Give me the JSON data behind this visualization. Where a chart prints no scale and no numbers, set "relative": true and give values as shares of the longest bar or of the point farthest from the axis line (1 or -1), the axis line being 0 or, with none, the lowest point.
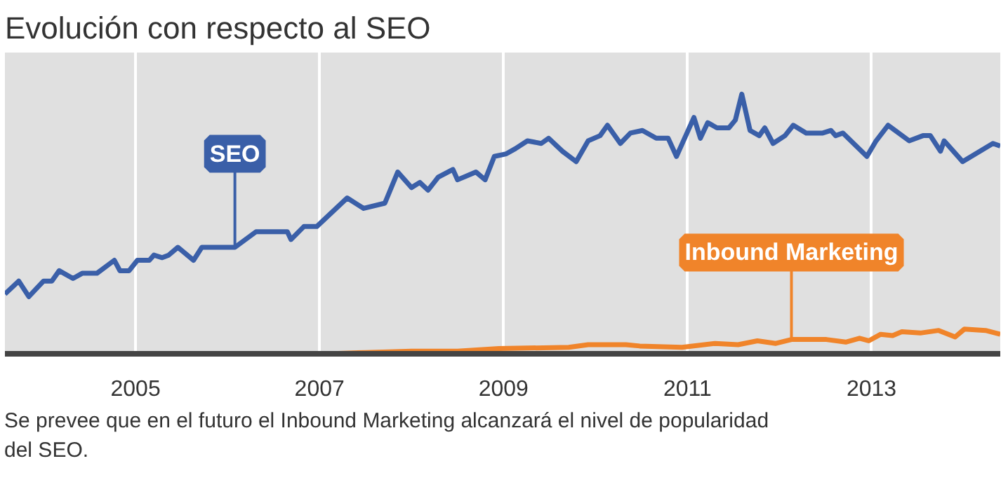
{
  "chart_data": {
    "type": "line",
    "title": "Evolución con respecto al SEO",
    "relative": true,
    "grid": "x",
    "tick_labels": "x",
    "xlim": [
      2003.58,
      2014.4
    ],
    "xticks": [
      2005,
      2007,
      2009,
      2011,
      2013
    ],
    "annotations": [
      "Se prevee que en el futuro el Inbound Marketing alcanzará el nivel de popularidad del SEO."
    ],
    "series": [
      {
        "name": "SEO",
        "color": "#3a5fa8",
        "x": [
          2003.58,
          2003.73,
          2003.84,
          2004.0,
          2004.09,
          2004.17,
          2004.32,
          2004.42,
          2004.58,
          2004.77,
          2004.83,
          2004.93,
          2005.02,
          2005.15,
          2005.2,
          2005.29,
          2005.36,
          2005.46,
          2005.63,
          2005.72,
          2006.08,
          2006.31,
          2006.65,
          2006.69,
          2006.83,
          2006.97,
          2007.3,
          2007.48,
          2007.71,
          2007.85,
          2008.0,
          2008.09,
          2008.18,
          2008.29,
          2008.45,
          2008.5,
          2008.7,
          2008.8,
          2008.9,
          2009.03,
          2009.13,
          2009.26,
          2009.41,
          2009.49,
          2009.64,
          2009.79,
          2009.92,
          2010.05,
          2010.13,
          2010.27,
          2010.38,
          2010.51,
          2010.66,
          2010.79,
          2010.88,
          2011.07,
          2011.14,
          2011.22,
          2011.32,
          2011.45,
          2011.52,
          2011.59,
          2011.68,
          2011.78,
          2011.84,
          2011.93,
          2012.06,
          2012.15,
          2012.29,
          2012.47,
          2012.56,
          2012.61,
          2012.69,
          2012.95,
          2013.05,
          2013.18,
          2013.41,
          2013.56,
          2013.64,
          2013.75,
          2013.79,
          2013.99,
          2014.32,
          2014.4
        ],
        "values": [
          0.23,
          0.28,
          0.22,
          0.28,
          0.28,
          0.32,
          0.29,
          0.31,
          0.31,
          0.36,
          0.32,
          0.32,
          0.36,
          0.36,
          0.38,
          0.37,
          0.38,
          0.41,
          0.36,
          0.41,
          0.41,
          0.47,
          0.47,
          0.44,
          0.49,
          0.49,
          0.6,
          0.56,
          0.58,
          0.7,
          0.64,
          0.66,
          0.63,
          0.68,
          0.71,
          0.67,
          0.7,
          0.67,
          0.76,
          0.77,
          0.79,
          0.82,
          0.81,
          0.83,
          0.78,
          0.74,
          0.82,
          0.84,
          0.88,
          0.81,
          0.85,
          0.86,
          0.83,
          0.83,
          0.76,
          0.91,
          0.83,
          0.89,
          0.87,
          0.87,
          0.9,
          1.0,
          0.86,
          0.84,
          0.87,
          0.81,
          0.84,
          0.88,
          0.85,
          0.85,
          0.86,
          0.84,
          0.85,
          0.76,
          0.82,
          0.88,
          0.82,
          0.84,
          0.84,
          0.78,
          0.82,
          0.74,
          0.81,
          0.8
        ]
      },
      {
        "name": "Inbound Marketing",
        "color": "#f0842a",
        "x": [
          2007.09,
          2007.5,
          2008.0,
          2008.5,
          2008.95,
          2009.71,
          2009.92,
          2010.33,
          2010.48,
          2010.94,
          2011.3,
          2011.55,
          2011.76,
          2011.96,
          2012.13,
          2012.51,
          2012.72,
          2012.87,
          2012.97,
          2013.1,
          2013.23,
          2013.33,
          2013.53,
          2013.73,
          2013.91,
          2014.01,
          2014.24,
          2014.4
        ],
        "values": [
          0.0,
          0.005,
          0.01,
          0.01,
          0.02,
          0.025,
          0.035,
          0.035,
          0.03,
          0.025,
          0.04,
          0.035,
          0.05,
          0.04,
          0.055,
          0.055,
          0.045,
          0.06,
          0.05,
          0.075,
          0.07,
          0.085,
          0.08,
          0.09,
          0.065,
          0.095,
          0.09,
          0.075
        ]
      }
    ]
  }
}
